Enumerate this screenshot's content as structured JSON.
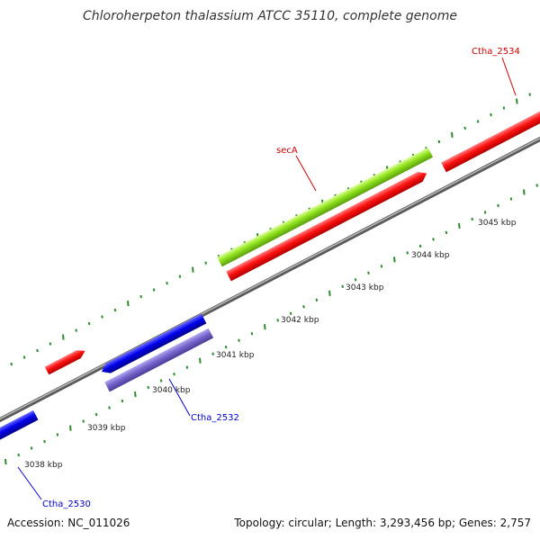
{
  "title": "Chloroherpeton thalassium ATCC 35110, complete genome",
  "footer": {
    "accession": "Accession: NC_011026",
    "summary": "Topology: circular; Length: 3,293,456 bp; Genes: 2,757"
  },
  "colors": {
    "background": "#ffffff",
    "backbone": "#808080",
    "tick_dots": "#2e8b2e",
    "forward_gene": "#ff0000",
    "reverse_gene": "#0000ff",
    "rna_gene": "#88ee22",
    "reverse_gene_light": "#7766cc",
    "label_red": "#cc0000",
    "label_blue": "#0000cc"
  },
  "scale_labels": [
    "3038 kbp",
    "3039 kbp",
    "3040 kbp",
    "3041 kbp",
    "3042 kbp",
    "3043 kbp",
    "3044 kbp",
    "3045 kbp"
  ],
  "gene_labels": [
    {
      "id": "secA",
      "text": "secA",
      "color": "#cc0000"
    },
    {
      "id": "ctha2534",
      "text": "Ctha_2534",
      "color": "#cc0000"
    },
    {
      "id": "ctha2532",
      "text": "Ctha_2532",
      "color": "#0000cc"
    },
    {
      "id": "ctha2530",
      "text": "Ctha_2530",
      "color": "#0000cc"
    }
  ]
}
